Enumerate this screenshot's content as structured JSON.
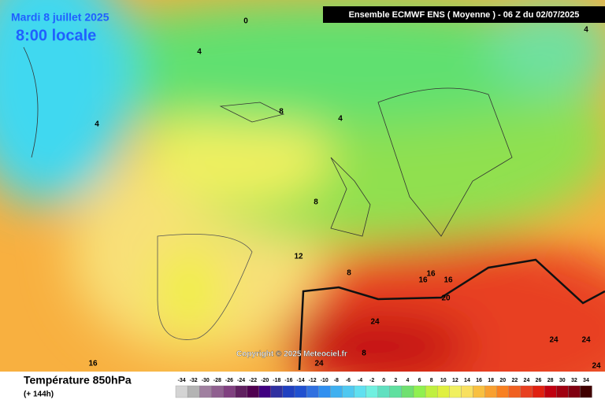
{
  "header": {
    "date": "Mardi 8 juillet 2025",
    "time": "8:00 locale",
    "run": "Ensemble ECMWF ENS  ( Moyenne )  -  06 Z du 02/07/2025"
  },
  "copyright": "Copyright © 2025 Meteociel.fr",
  "footer": {
    "parameter": "Température 850hPa",
    "lead": "(+ 144h)"
  },
  "contour_labels": [
    "0",
    "4",
    "4",
    "4",
    "8",
    "4",
    "8",
    "12",
    "8",
    "16",
    "16",
    "16",
    "20",
    "24",
    "8",
    "16",
    "24",
    "24",
    "24",
    "24"
  ],
  "scale": {
    "labels": [
      "-34",
      "-32",
      "-30",
      "-28",
      "-26",
      "-24",
      "-22",
      "-20",
      "-18",
      "-16",
      "-14",
      "-12",
      "-10",
      "-8",
      "-6",
      "-4",
      "-2",
      "0",
      "2",
      "4",
      "6",
      "8",
      "10",
      "12",
      "14",
      "16",
      "18",
      "20",
      "22",
      "24",
      "26",
      "28",
      "30",
      "32",
      "34"
    ],
    "colors": [
      "#d4d4d4",
      "#b4b4b4",
      "#a080a0",
      "#906090",
      "#804080",
      "#602060",
      "#500050",
      "#400080",
      "#3030a0",
      "#2040c0",
      "#2050d0",
      "#3070e0",
      "#3090f0",
      "#40b0f0",
      "#50c8f0",
      "#60e0f0",
      "#70f0e0",
      "#60e0c0",
      "#60e0a0",
      "#70e070",
      "#90f050",
      "#c0f040",
      "#e0f040",
      "#f0f060",
      "#f8e060",
      "#f8c040",
      "#f8a030",
      "#f88020",
      "#f06020",
      "#e84020",
      "#e02010",
      "#c00010",
      "#a00010",
      "#800010",
      "#400000"
    ]
  }
}
